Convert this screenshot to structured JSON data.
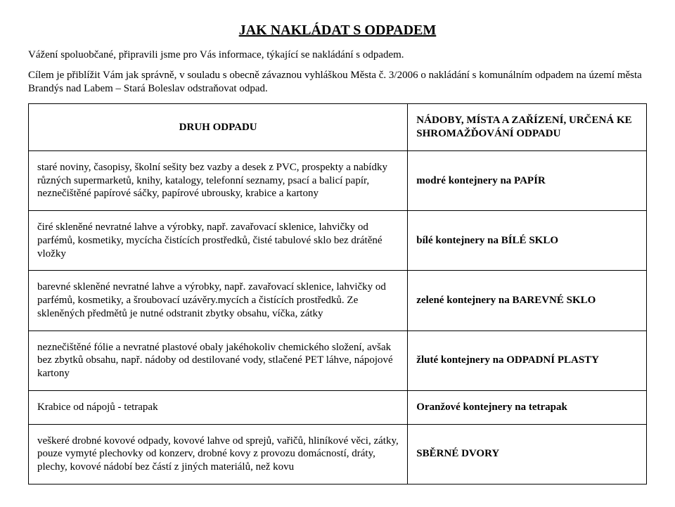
{
  "title": "JAK NAKLÁDAT S ODPADEM",
  "intro": {
    "p1": "Vážení spoluobčané, připravili jsme pro Vás informace, týkající se nakládání s odpadem.",
    "p2": "Cílem je přiblížit Vám jak správně, v souladu s obecně závaznou vyhláškou Města č. 3/2006 o nakládání s komunálním odpadem na území města Brandýs nad Labem – Stará Boleslav odstraňovat odpad."
  },
  "table": {
    "header": {
      "left": "DRUH ODPADU",
      "right": "NÁDOBY, MÍSTA A ZAŘÍZENÍ, URČENÁ KE SHROMAŽĎOVÁNÍ ODPADU"
    },
    "rows": [
      {
        "desc": "staré noviny, časopisy, školní sešity bez vazby a desek z PVC, prospekty a nabídky různých supermarketů, knihy, katalogy, telefonní seznamy, psací a balicí papír, neznečištěné papírové sáčky, papírové ubrousky, krabice a kartony",
        "bin": "modré kontejnery na PAPÍR"
      },
      {
        "desc": "čiré skleněné nevratné lahve a výrobky, např. zavařovací sklenice, lahvičky od parfémů, kosmetiky, mycícha čistících prostředků, čisté tabulové sklo bez drátěné vložky",
        "bin": "bílé kontejnery na BÍLÉ SKLO"
      },
      {
        "desc": "barevné skleněné nevratné lahve a výrobky, např. zavařovací sklenice, lahvičky od parfémů, kosmetiky, a šroubovací uzávěry.mycích a čistících prostředků. Ze skleněných předmětů je nutné odstranit zbytky obsahu, víčka, zátky",
        "bin": "zelené kontejnery na BAREVNÉ SKLO"
      },
      {
        "desc": "neznečištěné fólie a nevratné plastové obaly jakéhokoliv chemického složení, avšak bez zbytků obsahu, např. nádoby od destilované vody, stlačené PET láhve, nápojové kartony",
        "bin": "žluté kontejnery na ODPADNÍ PLASTY"
      },
      {
        "desc": "Krabice od nápojů - tetrapak",
        "bin": "Oranžové kontejnery na tetrapak"
      },
      {
        "desc": "veškeré drobné kovové  odpady, kovové lahve od sprejů, vařičů, hliníkové věci,  zátky, pouze vymyté plechovky od konzerv, drobné kovy z provozu domácností, dráty,  plechy, kovové nádobí bez částí  z jiných materiálů, než kovu",
        "bin": "SBĚRNÉ DVORY"
      }
    ]
  }
}
